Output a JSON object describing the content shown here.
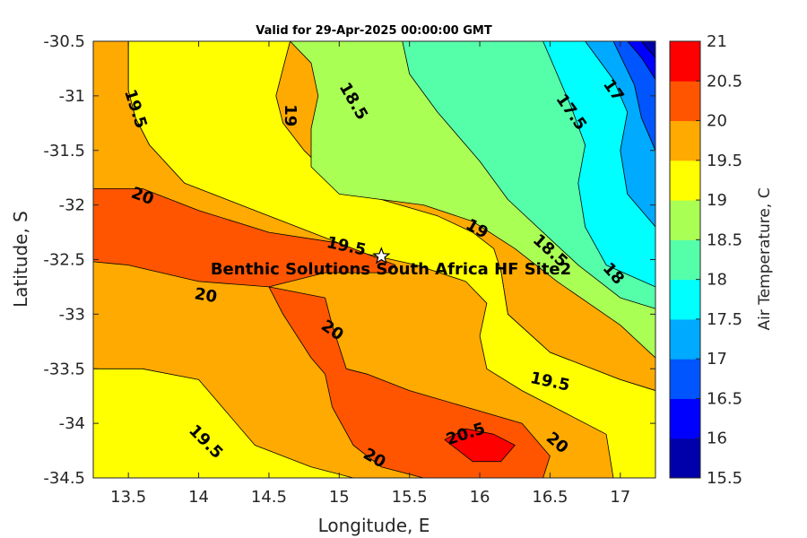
{
  "chart_data": {
    "type": "contour",
    "title": "Valid for 29-Apr-2025 00:00:00 GMT",
    "xlabel": "Longitude, E",
    "ylabel": "Latitude, S",
    "xlim": [
      13.25,
      17.25
    ],
    "ylim": [
      -34.5,
      -30.5
    ],
    "x_ticks": [
      "13.5",
      "14",
      "14.5",
      "15",
      "15.5",
      "16",
      "16.5",
      "17"
    ],
    "x_tick_values": [
      13.5,
      14,
      14.5,
      15,
      15.5,
      16,
      16.5,
      17
    ],
    "y_ticks": [
      "-30.5",
      "-31",
      "-31.5",
      "-32",
      "-32.5",
      "-33",
      "-33.5",
      "-34",
      "-34.5"
    ],
    "y_tick_values": [
      -30.5,
      -31,
      -31.5,
      -32,
      -32.5,
      -33,
      -33.5,
      -34,
      -34.5
    ],
    "colorbar": {
      "label": "Air Temperature, C",
      "tick_labels": [
        "15.5",
        "16",
        "16.5",
        "17",
        "17.5",
        "18",
        "18.5",
        "19",
        "19.5",
        "20",
        "20.5",
        "21"
      ],
      "levels": [
        15.5,
        16,
        16.5,
        17,
        17.5,
        18,
        18.5,
        19,
        19.5,
        20,
        20.5,
        21
      ],
      "colors": [
        "#0000aa",
        "#0000ff",
        "#0055ff",
        "#00aaff",
        "#00ffff",
        "#55ffaa",
        "#aaff55",
        "#ffff00",
        "#ffaa00",
        "#ff5500",
        "#ff0000",
        "#aa0000"
      ]
    },
    "regions": [
      {
        "level": 19.5,
        "points": [
          [
            13.25,
            -30.5
          ],
          [
            13.5,
            -30.5
          ],
          [
            13.5,
            -30.95
          ],
          [
            13.55,
            -31.2
          ],
          [
            13.65,
            -31.45
          ],
          [
            14.0,
            -31.65
          ],
          [
            14.5,
            -31.8
          ],
          [
            15.0,
            -31.95
          ],
          [
            15.3,
            -32.2
          ],
          [
            15.5,
            -32.35
          ],
          [
            16.0,
            -32.4
          ],
          [
            16.15,
            -32.6
          ],
          [
            16.2,
            -33.0
          ],
          [
            16.5,
            -33.35
          ],
          [
            17.0,
            -33.6
          ],
          [
            17.25,
            -33.7
          ],
          [
            17.25,
            -34.5
          ],
          [
            13.25,
            -34.5
          ]
        ]
      },
      {
        "level": 20.0,
        "points": [
          [
            13.25,
            -31.85
          ],
          [
            13.6,
            -31.85
          ],
          [
            14.0,
            -32.05
          ],
          [
            14.5,
            -32.25
          ],
          [
            15.0,
            -32.35
          ],
          [
            15.4,
            -32.55
          ],
          [
            15.35,
            -32.62
          ],
          [
            14.9,
            -32.62
          ],
          [
            14.5,
            -32.75
          ],
          [
            14.0,
            -32.7
          ],
          [
            13.5,
            -32.55
          ],
          [
            13.25,
            -32.52
          ]
        ]
      },
      {
        "level": 20.0,
        "points": [
          [
            14.5,
            -32.75
          ],
          [
            14.9,
            -32.85
          ],
          [
            14.95,
            -33.1
          ],
          [
            15.05,
            -33.5
          ],
          [
            15.2,
            -33.55
          ],
          [
            15.5,
            -33.7
          ],
          [
            15.9,
            -33.85
          ],
          [
            16.3,
            -34.0
          ],
          [
            16.5,
            -34.3
          ],
          [
            16.45,
            -34.5
          ],
          [
            15.6,
            -34.5
          ],
          [
            15.3,
            -34.4
          ],
          [
            15.1,
            -34.2
          ],
          [
            14.95,
            -33.85
          ],
          [
            14.9,
            -33.55
          ],
          [
            14.8,
            -33.4
          ],
          [
            14.6,
            -33.0
          ]
        ]
      },
      {
        "level": 20.5,
        "points": [
          [
            15.75,
            -34.15
          ],
          [
            15.9,
            -34.05
          ],
          [
            16.1,
            -34.1
          ],
          [
            16.25,
            -34.2
          ],
          [
            16.15,
            -34.35
          ],
          [
            15.95,
            -34.35
          ]
        ]
      },
      {
        "level": 19.0,
        "points": [
          [
            13.5,
            -30.5
          ],
          [
            14.65,
            -30.5
          ],
          [
            14.6,
            -30.75
          ],
          [
            14.55,
            -31.0
          ],
          [
            14.6,
            -31.25
          ],
          [
            14.75,
            -31.5
          ],
          [
            14.95,
            -31.75
          ],
          [
            15.3,
            -31.95
          ],
          [
            15.7,
            -32.1
          ],
          [
            15.95,
            -32.25
          ],
          [
            16.1,
            -32.4
          ],
          [
            16.15,
            -32.6
          ],
          [
            16.2,
            -33.0
          ],
          [
            16.5,
            -33.35
          ],
          [
            17.0,
            -33.6
          ],
          [
            17.25,
            -33.7
          ],
          [
            17.25,
            -34.5
          ],
          [
            16.95,
            -34.5
          ],
          [
            16.9,
            -34.1
          ],
          [
            16.6,
            -33.9
          ],
          [
            16.3,
            -33.7
          ],
          [
            16.05,
            -33.5
          ],
          [
            16.0,
            -33.2
          ],
          [
            16.05,
            -32.9
          ],
          [
            15.9,
            -32.7
          ],
          [
            15.55,
            -32.55
          ],
          [
            15.2,
            -32.45
          ],
          [
            14.9,
            -32.3
          ],
          [
            14.4,
            -32.05
          ],
          [
            13.9,
            -31.8
          ],
          [
            13.65,
            -31.45
          ],
          [
            13.55,
            -31.2
          ],
          [
            13.5,
            -30.95
          ]
        ]
      },
      {
        "level": 19.0,
        "points": [
          [
            13.25,
            -33.5
          ],
          [
            13.6,
            -33.5
          ],
          [
            14.0,
            -33.6
          ],
          [
            14.2,
            -33.9
          ],
          [
            14.4,
            -34.2
          ],
          [
            14.8,
            -34.4
          ],
          [
            15.1,
            -34.5
          ],
          [
            13.25,
            -34.5
          ]
        ]
      },
      {
        "level": 18.5,
        "points": [
          [
            14.65,
            -30.5
          ],
          [
            17.25,
            -30.5
          ],
          [
            17.25,
            -33.4
          ],
          [
            17.0,
            -33.1
          ],
          [
            16.55,
            -32.7
          ],
          [
            16.25,
            -32.4
          ],
          [
            15.95,
            -32.15
          ],
          [
            15.6,
            -32.0
          ],
          [
            15.0,
            -31.9
          ],
          [
            14.8,
            -31.65
          ],
          [
            14.8,
            -31.3
          ],
          [
            14.85,
            -31.0
          ],
          [
            14.8,
            -30.7
          ]
        ]
      },
      {
        "level": 18.0,
        "points": [
          [
            15.45,
            -30.5
          ],
          [
            17.25,
            -30.5
          ],
          [
            17.25,
            -32.95
          ],
          [
            17.0,
            -32.85
          ],
          [
            16.7,
            -32.55
          ],
          [
            16.45,
            -32.25
          ],
          [
            16.2,
            -31.95
          ],
          [
            16.0,
            -31.6
          ],
          [
            15.7,
            -31.15
          ],
          [
            15.5,
            -30.8
          ]
        ]
      },
      {
        "level": 17.5,
        "points": [
          [
            16.45,
            -30.5
          ],
          [
            17.25,
            -30.5
          ],
          [
            17.25,
            -32.75
          ],
          [
            16.9,
            -32.55
          ],
          [
            16.75,
            -32.2
          ],
          [
            16.7,
            -31.8
          ],
          [
            16.75,
            -31.45
          ],
          [
            16.65,
            -31.1
          ],
          [
            16.55,
            -30.8
          ]
        ]
      },
      {
        "level": 17.0,
        "points": [
          [
            16.75,
            -30.5
          ],
          [
            17.25,
            -30.5
          ],
          [
            17.25,
            -32.2
          ],
          [
            17.05,
            -31.9
          ],
          [
            17.0,
            -31.5
          ],
          [
            17.05,
            -31.15
          ],
          [
            16.95,
            -30.85
          ]
        ]
      },
      {
        "level": 16.5,
        "points": [
          [
            16.95,
            -30.5
          ],
          [
            17.25,
            -30.5
          ],
          [
            17.25,
            -31.5
          ],
          [
            17.15,
            -31.2
          ],
          [
            17.1,
            -30.9
          ]
        ]
      },
      {
        "level": 16.0,
        "points": [
          [
            17.05,
            -30.5
          ],
          [
            17.25,
            -30.5
          ],
          [
            17.25,
            -30.85
          ],
          [
            17.15,
            -30.65
          ]
        ]
      },
      {
        "level": 15.5,
        "points": [
          [
            17.15,
            -30.5
          ],
          [
            17.25,
            -30.5
          ],
          [
            17.25,
            -30.65
          ]
        ]
      }
    ],
    "contour_labels": [
      {
        "text": "19.5",
        "lon": 13.55,
        "lat": -31.12,
        "angle": 72
      },
      {
        "text": "19",
        "lon": 14.65,
        "lat": -31.18,
        "angle": 90
      },
      {
        "text": "18.5",
        "lon": 15.1,
        "lat": -31.05,
        "angle": 60
      },
      {
        "text": "17.5",
        "lon": 16.65,
        "lat": -31.15,
        "angle": 55
      },
      {
        "text": "17",
        "lon": 16.95,
        "lat": -30.95,
        "angle": 55
      },
      {
        "text": "20",
        "lon": 13.6,
        "lat": -31.92,
        "angle": 20
      },
      {
        "text": "19.5",
        "lon": 15.05,
        "lat": -32.38,
        "angle": 12
      },
      {
        "text": "19",
        "lon": 15.98,
        "lat": -32.22,
        "angle": 30
      },
      {
        "text": "18.5",
        "lon": 16.5,
        "lat": -32.42,
        "angle": 42
      },
      {
        "text": "18",
        "lon": 16.95,
        "lat": -32.63,
        "angle": 48
      },
      {
        "text": "20",
        "lon": 14.05,
        "lat": -32.83,
        "angle": 10
      },
      {
        "text": "20",
        "lon": 14.95,
        "lat": -33.15,
        "angle": 35
      },
      {
        "text": "19.5",
        "lon": 16.5,
        "lat": -33.62,
        "angle": 12
      },
      {
        "text": "19.5",
        "lon": 14.05,
        "lat": -34.17,
        "angle": 45
      },
      {
        "text": "20",
        "lon": 15.25,
        "lat": -34.32,
        "angle": 30
      },
      {
        "text": "20.5",
        "lon": 15.9,
        "lat": -34.1,
        "angle": -18
      },
      {
        "text": "20",
        "lon": 16.55,
        "lat": -34.18,
        "angle": 40
      }
    ],
    "site": {
      "name": "Benthic Solutions South Africa HF Site2",
      "lon": 15.3,
      "lat": -32.47
    }
  }
}
